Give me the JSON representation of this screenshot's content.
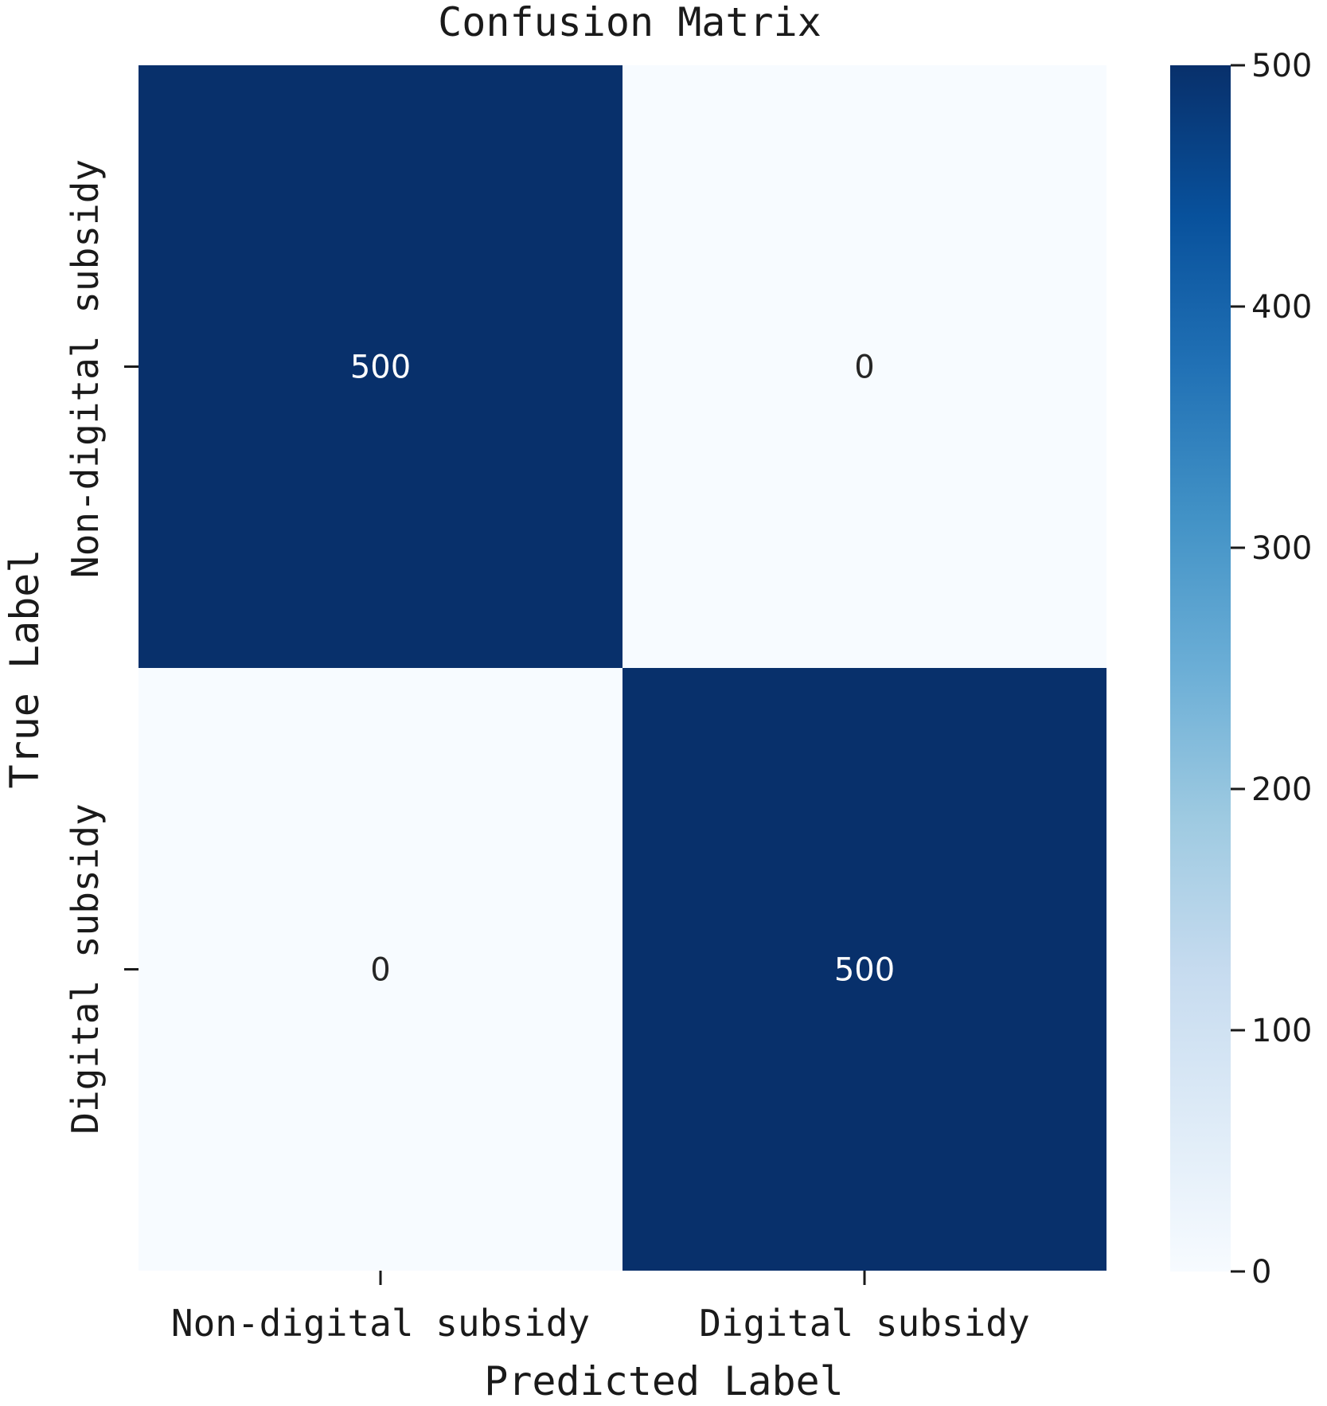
{
  "chart_data": {
    "type": "heatmap",
    "title": "Confusion Matrix",
    "xlabel": "Predicted Label",
    "ylabel": "True Label",
    "x_categories": [
      "Non-digital subsidy",
      "Digital subsidy"
    ],
    "y_categories": [
      "Non-digital subsidy",
      "Digital subsidy"
    ],
    "values": [
      [
        500,
        0
      ],
      [
        0,
        500
      ]
    ],
    "colormap": "Blues",
    "vmin": 0,
    "vmax": 500,
    "colorbar": {
      "ticks": [
        0,
        100,
        200,
        300,
        400,
        500
      ]
    },
    "colors": {
      "high": "#08306b",
      "low": "#f7fbff",
      "text_on_dark": "#ffffff",
      "text_on_light": "#262626"
    }
  }
}
